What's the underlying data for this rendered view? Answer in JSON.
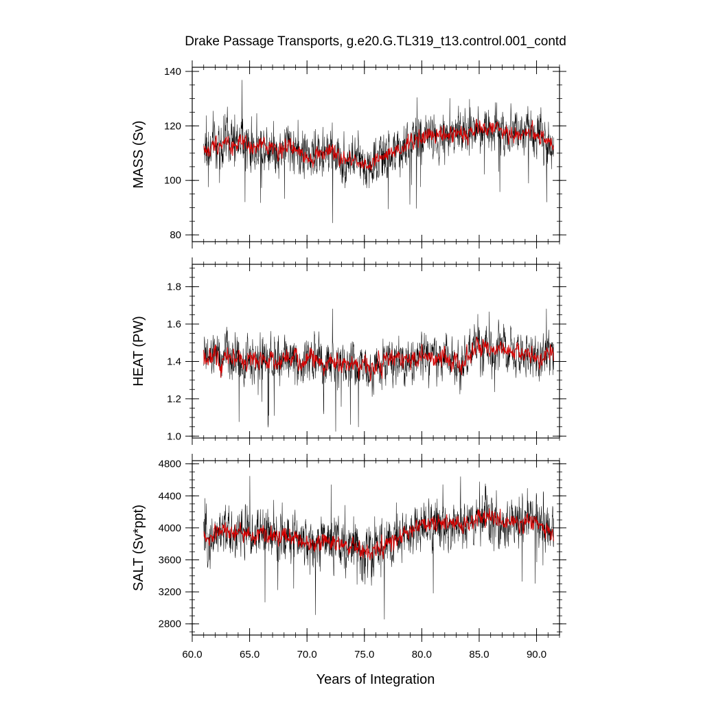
{
  "title": "Drake Passage Transports, g.e20.G.TL319_t13.control.001_contd",
  "xlabel": "Years of Integration",
  "colors": {
    "raw_series": "#000000",
    "smoothed_series": "#d40000",
    "frame": "#000000"
  },
  "chart_data": [
    {
      "type": "line",
      "ylabel": "MASS (Sv)",
      "xlim": [
        60,
        92
      ],
      "ylim": [
        77.5,
        141.5
      ],
      "yticks": [
        80,
        100,
        120,
        140
      ],
      "yticklabels": [
        "80",
        "100",
        "120",
        "140"
      ],
      "yminor": 5,
      "xticks": [
        60,
        65,
        70,
        75,
        80,
        85,
        90
      ],
      "xticklabels": [
        "",
        "",
        "",
        "",
        "",
        "",
        ""
      ],
      "xminor": 1,
      "grid": false,
      "series": [
        {
          "role": "raw",
          "color": "#000000",
          "x": [
            61.0,
            61.5,
            62.0,
            62.5,
            63.0,
            63.5,
            64.0,
            64.5,
            65.0,
            65.5,
            66.0,
            66.5,
            67.0,
            67.5,
            68.0,
            68.5,
            69.0,
            69.5,
            70.0,
            70.5,
            71.0,
            71.5,
            72.0,
            72.5,
            73.0,
            73.5,
            74.0,
            74.5,
            75.0,
            75.5,
            76.0,
            76.5,
            77.0,
            77.5,
            78.0,
            78.5,
            79.0,
            79.5,
            80.0,
            80.5,
            81.0,
            81.5,
            82.0,
            82.5,
            83.0,
            83.5,
            84.0,
            84.5,
            85.0,
            85.5,
            86.0,
            86.5,
            87.0,
            87.5,
            88.0,
            88.5,
            89.0,
            89.5,
            90.0,
            90.5,
            91.0,
            91.5
          ],
          "y": [
            112,
            110,
            114,
            113,
            115,
            112,
            114,
            113,
            112,
            111,
            114,
            112,
            113,
            110,
            113,
            112,
            111,
            110,
            109,
            108,
            110,
            110,
            111,
            109,
            108,
            107,
            108,
            107,
            106,
            105,
            107,
            108,
            109,
            110,
            110,
            112,
            114,
            115,
            116,
            116,
            117,
            116,
            117,
            116,
            118,
            117,
            117,
            118,
            119,
            119,
            120,
            119,
            118,
            117,
            117,
            116,
            118,
            118,
            117,
            116,
            115,
            112
          ],
          "spread": 9
        },
        {
          "role": "smoothed",
          "color": "#d40000",
          "x": [
            61.0,
            61.5,
            62.0,
            62.5,
            63.0,
            63.5,
            64.0,
            64.5,
            65.0,
            65.5,
            66.0,
            66.5,
            67.0,
            67.5,
            68.0,
            68.5,
            69.0,
            69.5,
            70.0,
            70.5,
            71.0,
            71.5,
            72.0,
            72.5,
            73.0,
            73.5,
            74.0,
            74.5,
            75.0,
            75.5,
            76.0,
            76.5,
            77.0,
            77.5,
            78.0,
            78.5,
            79.0,
            79.5,
            80.0,
            80.5,
            81.0,
            81.5,
            82.0,
            82.5,
            83.0,
            83.5,
            84.0,
            84.5,
            85.0,
            85.5,
            86.0,
            86.5,
            87.0,
            87.5,
            88.0,
            88.5,
            89.0,
            89.5,
            90.0,
            90.5,
            91.0,
            91.5
          ],
          "y": [
            112,
            110,
            114,
            113,
            115,
            112,
            114,
            113,
            112,
            111,
            114,
            112,
            113,
            110,
            113,
            112,
            111,
            110,
            109,
            108,
            110,
            110,
            111,
            109,
            108,
            107,
            108,
            107,
            106,
            105,
            107,
            108,
            109,
            110,
            110,
            112,
            114,
            115,
            116,
            116,
            117,
            116,
            117,
            116,
            118,
            117,
            117,
            118,
            119,
            119,
            120,
            119,
            118,
            117,
            117,
            116,
            118,
            118,
            117,
            116,
            115,
            112
          ],
          "spread": 3
        }
      ]
    },
    {
      "type": "line",
      "ylabel": "HEAT (PW)",
      "xlim": [
        60,
        92
      ],
      "ylim": [
        0.99,
        1.92
      ],
      "yticks": [
        1.0,
        1.2,
        1.4,
        1.6,
        1.8
      ],
      "yticklabels": [
        "1.0",
        "1.2",
        "1.4",
        "1.6",
        "1.8"
      ],
      "yminor": 0.05,
      "xticks": [
        60,
        65,
        70,
        75,
        80,
        85,
        90
      ],
      "xticklabels": [
        "",
        "",
        "",
        "",
        "",
        "",
        ""
      ],
      "xminor": 1,
      "grid": false,
      "series": [
        {
          "role": "raw",
          "color": "#000000",
          "x": [
            61.0,
            61.5,
            62.0,
            62.5,
            63.0,
            63.5,
            64.0,
            64.5,
            65.0,
            65.5,
            66.0,
            66.5,
            67.0,
            67.5,
            68.0,
            68.5,
            69.0,
            69.5,
            70.0,
            70.5,
            71.0,
            71.5,
            72.0,
            72.5,
            73.0,
            73.5,
            74.0,
            74.5,
            75.0,
            75.5,
            76.0,
            76.5,
            77.0,
            77.5,
            78.0,
            78.5,
            79.0,
            79.5,
            80.0,
            80.5,
            81.0,
            81.5,
            82.0,
            82.5,
            83.0,
            83.5,
            84.0,
            84.5,
            85.0,
            85.5,
            86.0,
            86.5,
            87.0,
            87.5,
            88.0,
            88.5,
            89.0,
            89.5,
            90.0,
            90.5,
            91.0,
            91.5
          ],
          "y": [
            1.44,
            1.4,
            1.45,
            1.38,
            1.46,
            1.4,
            1.44,
            1.38,
            1.42,
            1.39,
            1.44,
            1.37,
            1.43,
            1.38,
            1.45,
            1.4,
            1.43,
            1.37,
            1.41,
            1.44,
            1.4,
            1.36,
            1.42,
            1.38,
            1.4,
            1.37,
            1.41,
            1.36,
            1.39,
            1.35,
            1.4,
            1.38,
            1.42,
            1.4,
            1.44,
            1.41,
            1.42,
            1.4,
            1.44,
            1.42,
            1.4,
            1.41,
            1.43,
            1.39,
            1.42,
            1.38,
            1.44,
            1.46,
            1.48,
            1.46,
            1.44,
            1.45,
            1.47,
            1.44,
            1.46,
            1.45,
            1.44,
            1.42,
            1.43,
            1.41,
            1.44,
            1.42
          ],
          "spread": 0.12
        },
        {
          "role": "smoothed",
          "color": "#d40000",
          "x": [
            61.0,
            61.5,
            62.0,
            62.5,
            63.0,
            63.5,
            64.0,
            64.5,
            65.0,
            65.5,
            66.0,
            66.5,
            67.0,
            67.5,
            68.0,
            68.5,
            69.0,
            69.5,
            70.0,
            70.5,
            71.0,
            71.5,
            72.0,
            72.5,
            73.0,
            73.5,
            74.0,
            74.5,
            75.0,
            75.5,
            76.0,
            76.5,
            77.0,
            77.5,
            78.0,
            78.5,
            79.0,
            79.5,
            80.0,
            80.5,
            81.0,
            81.5,
            82.0,
            82.5,
            83.0,
            83.5,
            84.0,
            84.5,
            85.0,
            85.5,
            86.0,
            86.5,
            87.0,
            87.5,
            88.0,
            88.5,
            89.0,
            89.5,
            90.0,
            90.5,
            91.0,
            91.5
          ],
          "y": [
            1.44,
            1.4,
            1.45,
            1.38,
            1.46,
            1.4,
            1.44,
            1.38,
            1.42,
            1.39,
            1.44,
            1.37,
            1.43,
            1.38,
            1.45,
            1.4,
            1.43,
            1.37,
            1.41,
            1.44,
            1.4,
            1.36,
            1.42,
            1.38,
            1.4,
            1.37,
            1.41,
            1.36,
            1.39,
            1.35,
            1.4,
            1.38,
            1.42,
            1.4,
            1.44,
            1.41,
            1.42,
            1.4,
            1.44,
            1.42,
            1.4,
            1.41,
            1.43,
            1.39,
            1.42,
            1.38,
            1.44,
            1.46,
            1.48,
            1.46,
            1.44,
            1.45,
            1.47,
            1.44,
            1.46,
            1.45,
            1.44,
            1.42,
            1.43,
            1.41,
            1.44,
            1.42
          ],
          "spread": 0.05
        }
      ]
    },
    {
      "type": "line",
      "ylabel": "SALT (Sv*ppt)",
      "xlim": [
        60,
        92
      ],
      "ylim": [
        2660,
        4840
      ],
      "yticks": [
        2800,
        3200,
        3600,
        4000,
        4400,
        4800
      ],
      "yticklabels": [
        "2800",
        "3200",
        "3600",
        "4000",
        "4400",
        "4800"
      ],
      "yminor": 100,
      "xticks": [
        60,
        65,
        70,
        75,
        80,
        85,
        90
      ],
      "xticklabels": [
        "60.0",
        "65.0",
        "70.0",
        "75.0",
        "80.0",
        "85.0",
        "90.0"
      ],
      "xminor": 1,
      "grid": false,
      "series": [
        {
          "role": "raw",
          "color": "#000000",
          "x": [
            61.0,
            61.5,
            62.0,
            62.5,
            63.0,
            63.5,
            64.0,
            64.5,
            65.0,
            65.5,
            66.0,
            66.5,
            67.0,
            67.5,
            68.0,
            68.5,
            69.0,
            69.5,
            70.0,
            70.5,
            71.0,
            71.5,
            72.0,
            72.5,
            73.0,
            73.5,
            74.0,
            74.5,
            75.0,
            75.5,
            76.0,
            76.5,
            77.0,
            77.5,
            78.0,
            78.5,
            79.0,
            79.5,
            80.0,
            80.5,
            81.0,
            81.5,
            82.0,
            82.5,
            83.0,
            83.5,
            84.0,
            84.5,
            85.0,
            85.5,
            86.0,
            86.5,
            87.0,
            87.5,
            88.0,
            88.5,
            89.0,
            89.5,
            90.0,
            90.5,
            91.0,
            91.5
          ],
          "y": [
            3880,
            3820,
            3960,
            3920,
            3990,
            3900,
            3960,
            3930,
            3900,
            3870,
            3960,
            3900,
            3930,
            3840,
            3940,
            3900,
            3870,
            3850,
            3800,
            3780,
            3850,
            3840,
            3870,
            3800,
            3780,
            3740,
            3760,
            3740,
            3700,
            3660,
            3720,
            3760,
            3790,
            3830,
            3850,
            3900,
            3970,
            4000,
            4030,
            4030,
            4060,
            4030,
            4060,
            4030,
            4080,
            4050,
            4050,
            4080,
            4120,
            4120,
            4150,
            4120,
            4080,
            4050,
            4050,
            4030,
            4080,
            4090,
            4060,
            4030,
            3990,
            3880
          ],
          "spread": 320
        },
        {
          "role": "smoothed",
          "color": "#d40000",
          "x": [
            61.0,
            61.5,
            62.0,
            62.5,
            63.0,
            63.5,
            64.0,
            64.5,
            65.0,
            65.5,
            66.0,
            66.5,
            67.0,
            67.5,
            68.0,
            68.5,
            69.0,
            69.5,
            70.0,
            70.5,
            71.0,
            71.5,
            72.0,
            72.5,
            73.0,
            73.5,
            74.0,
            74.5,
            75.0,
            75.5,
            76.0,
            76.5,
            77.0,
            77.5,
            78.0,
            78.5,
            79.0,
            79.5,
            80.0,
            80.5,
            81.0,
            81.5,
            82.0,
            82.5,
            83.0,
            83.5,
            84.0,
            84.5,
            85.0,
            85.5,
            86.0,
            86.5,
            87.0,
            87.5,
            88.0,
            88.5,
            89.0,
            89.5,
            90.0,
            90.5,
            91.0,
            91.5
          ],
          "y": [
            3880,
            3820,
            3960,
            3920,
            3990,
            3900,
            3960,
            3930,
            3900,
            3870,
            3960,
            3900,
            3930,
            3840,
            3940,
            3900,
            3870,
            3850,
            3800,
            3780,
            3850,
            3840,
            3870,
            3800,
            3780,
            3740,
            3760,
            3740,
            3700,
            3660,
            3720,
            3760,
            3790,
            3830,
            3850,
            3900,
            3970,
            4000,
            4030,
            4030,
            4060,
            4030,
            4060,
            4030,
            4080,
            4050,
            4050,
            4080,
            4120,
            4120,
            4150,
            4120,
            4080,
            4050,
            4050,
            4030,
            4080,
            4090,
            4060,
            4030,
            3990,
            3880
          ],
          "spread": 110
        }
      ]
    }
  ]
}
